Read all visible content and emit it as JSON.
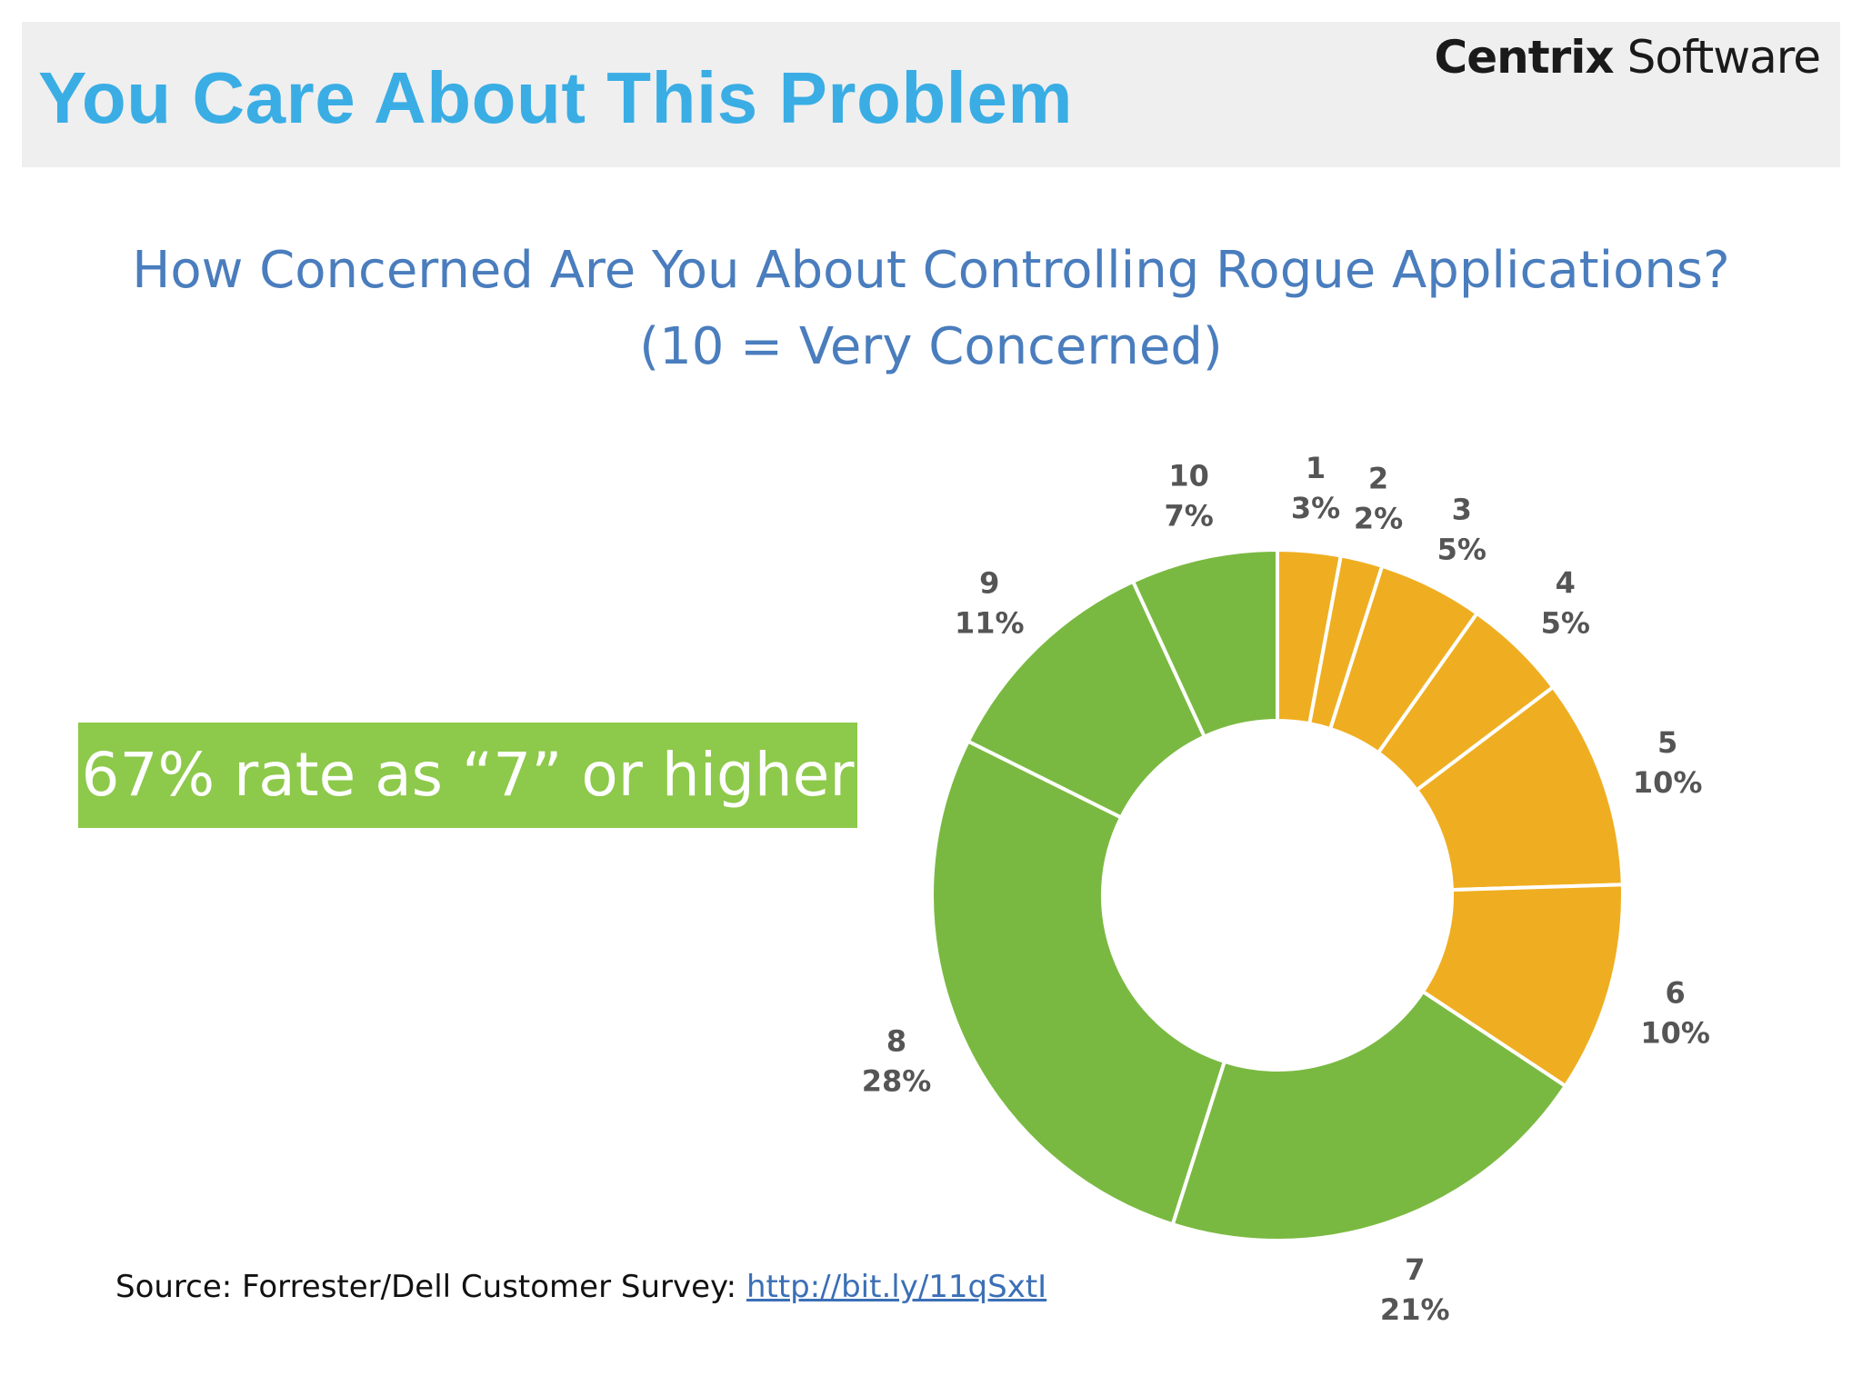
{
  "slide": {
    "title": "You Care About This Problem",
    "brand_bold": "Centrix",
    "brand_rest": " Software",
    "callout": "67% rate as “7” or higher",
    "source_prefix": "Source: Forrester/Dell Customer Survey: ",
    "source_link": "http://bit.ly/11qSxtI"
  },
  "chart_data": {
    "type": "pie",
    "variant": "donut",
    "title": "How Concerned Are You About Controlling Rogue Applications?",
    "subtitle": "(10 = Very Concerned)",
    "categories": [
      "1",
      "2",
      "3",
      "4",
      "5",
      "6",
      "7",
      "8",
      "9",
      "10"
    ],
    "values": [
      3,
      2,
      5,
      5,
      10,
      10,
      21,
      28,
      11,
      7
    ],
    "value_labels": [
      "3%",
      "2%",
      "5%",
      "5%",
      "10%",
      "10%",
      "21%",
      "28%",
      "11%",
      "7%"
    ],
    "colors": [
      "#efae21",
      "#efae21",
      "#efae21",
      "#efae21",
      "#efae21",
      "#efae21",
      "#7ab941",
      "#7ab941",
      "#7ab941",
      "#7ab941"
    ],
    "start": "12 o'clock",
    "direction": "clockwise",
    "legend": "none"
  }
}
